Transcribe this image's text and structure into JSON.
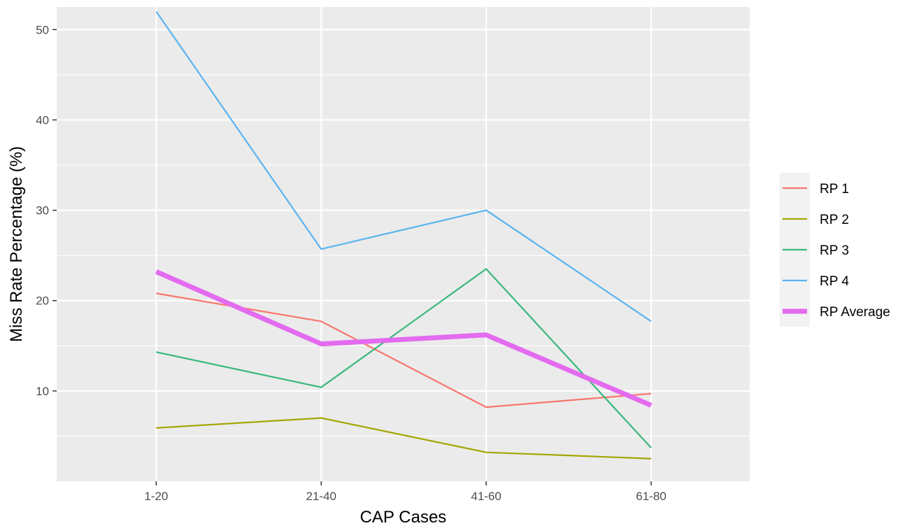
{
  "chart_data": {
    "type": "line",
    "categories": [
      "1-20",
      "21-40",
      "41-60",
      "61-80"
    ],
    "xlabel": "CAP Cases",
    "ylabel": "Miss Rate Percentage (%)",
    "ylim": [
      0,
      52.5
    ],
    "yticks": [
      10,
      20,
      30,
      40,
      50
    ],
    "grid": true,
    "legend_position": "right",
    "panel_background": "#ebebeb",
    "grid_color": "#ffffff",
    "series": [
      {
        "name": "RP 1",
        "color": "#f8766d",
        "width": "thin",
        "values": [
          20.8,
          17.7,
          8.2,
          9.7
        ]
      },
      {
        "name": "RP 2",
        "color": "#a3a500",
        "width": "thin",
        "values": [
          5.9,
          7.0,
          3.2,
          2.5
        ]
      },
      {
        "name": "RP 3",
        "color": "#39b87c",
        "width": "thin",
        "values": [
          14.3,
          10.4,
          23.5,
          3.7
        ]
      },
      {
        "name": "RP 4",
        "color": "#5ab4f0",
        "width": "thin",
        "values": [
          52.0,
          25.7,
          30.0,
          17.7
        ]
      },
      {
        "name": "RP Average",
        "color": "#e36bef",
        "width": "thick",
        "values": [
          23.2,
          15.2,
          16.2,
          8.4
        ]
      }
    ]
  }
}
